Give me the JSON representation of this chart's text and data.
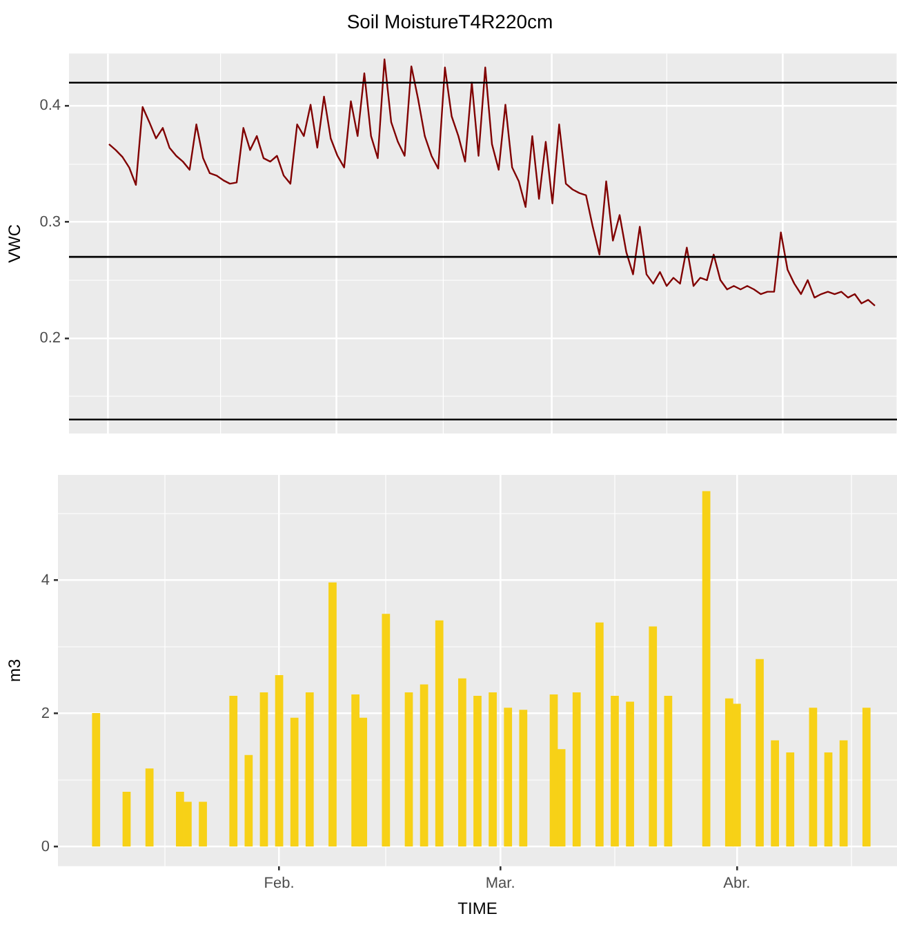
{
  "chart_data": [
    {
      "type": "line",
      "title": "Soil MoistureT4R220cm",
      "ylabel": "VWC",
      "color": "#800000",
      "categories": [
        null,
        null,
        null,
        null,
        null,
        null,
        null,
        null,
        null,
        null,
        null,
        null,
        null,
        null,
        null,
        null,
        null,
        null,
        null,
        null,
        null,
        null,
        null,
        null,
        null,
        null,
        null,
        null,
        null,
        null,
        null,
        null,
        null,
        null,
        null,
        null,
        null,
        null,
        null,
        null,
        null,
        null,
        null,
        null,
        null,
        null,
        null,
        null,
        null,
        null,
        null,
        null,
        null,
        null,
        null,
        null,
        null,
        null,
        null,
        null,
        null,
        null,
        null,
        null,
        null,
        null,
        null,
        null,
        null,
        null,
        null,
        null,
        null,
        null,
        null,
        null,
        null,
        null,
        null,
        null,
        null,
        null,
        null,
        null,
        null,
        null,
        null,
        null,
        null,
        null,
        null,
        null,
        null,
        null,
        null,
        null,
        null,
        null,
        null,
        null,
        null,
        null,
        null,
        null,
        null,
        null,
        null,
        null,
        null,
        null,
        null,
        null,
        null,
        null,
        null
      ],
      "values": [
        0.367,
        0.362,
        0.356,
        0.347,
        0.332,
        0.399,
        0.386,
        0.372,
        0.381,
        0.364,
        0.357,
        0.352,
        0.345,
        0.384,
        0.355,
        0.342,
        0.34,
        0.336,
        0.333,
        0.334,
        0.381,
        0.362,
        0.374,
        0.355,
        0.352,
        0.357,
        0.34,
        0.333,
        0.384,
        0.374,
        0.401,
        0.364,
        0.408,
        0.372,
        0.357,
        0.347,
        0.404,
        0.374,
        0.428,
        0.374,
        0.355,
        0.44,
        0.386,
        0.369,
        0.357,
        0.434,
        0.406,
        0.374,
        0.357,
        0.346,
        0.433,
        0.391,
        0.374,
        0.352,
        0.42,
        0.357,
        0.433,
        0.367,
        0.345,
        0.401,
        0.347,
        0.335,
        0.313,
        0.374,
        0.32,
        0.369,
        0.316,
        0.384,
        0.333,
        0.328,
        0.325,
        0.323,
        0.296,
        0.272,
        0.335,
        0.284,
        0.306,
        0.274,
        0.255,
        0.296,
        0.255,
        0.247,
        0.257,
        0.245,
        0.252,
        0.247,
        0.278,
        0.245,
        0.252,
        0.25,
        0.272,
        0.25,
        0.242,
        0.245,
        0.242,
        0.245,
        0.242,
        0.238,
        0.24,
        0.24,
        0.291,
        0.259,
        0.247,
        0.238,
        0.25,
        0.235,
        0.238,
        0.24,
        0.238,
        0.24,
        0.235,
        0.238,
        0.23,
        0.233,
        0.228
      ],
      "ylim": [
        0.118,
        0.445
      ],
      "yticks": [
        {
          "value": 0.15,
          "label": null
        },
        0.2,
        {
          "value": 0.25,
          "label": null
        },
        0.3,
        {
          "value": 0.35,
          "label": null
        },
        0.4
      ],
      "ref_lines": [
        {
          "axis": "y",
          "value": 0.42,
          "color": "#000000"
        },
        {
          "axis": "y",
          "value": 0.27,
          "color": "#000000"
        },
        {
          "axis": "y",
          "value": 0.13,
          "color": "#000000"
        }
      ],
      "grid": true,
      "tick_labels": "y",
      "line_style": "solid",
      "marker": "none"
    },
    {
      "type": "bar",
      "xlabel": "TIME",
      "ylabel": "m3",
      "color": "#f7d117",
      "x": [
        "--01-08",
        "--01-12",
        "--01-15",
        "--01-19",
        "--01-20",
        "--01-22",
        "--01-26",
        "--01-28",
        "--01-30",
        "--02-01",
        "--02-03",
        "--02-05",
        "--02-08",
        "--02-11",
        "--02-12",
        "--02-15",
        "--02-18",
        "--02-20",
        "--02-22",
        "--02-25",
        "--02-27",
        "--02-29",
        "--03-02",
        "--03-04",
        "--03-08",
        "--03-09",
        "--03-11",
        "--03-14",
        "--03-16",
        "--03-18",
        "--03-21",
        "--03-23",
        "--03-28",
        "--03-31",
        "--04-01",
        "--04-04",
        "--04-06",
        "--04-08",
        "--04-11",
        "--04-13",
        "--04-15",
        "--04-18"
      ],
      "values": [
        2.0,
        0.82,
        1.17,
        0.82,
        0.67,
        0.67,
        2.26,
        1.37,
        2.31,
        2.57,
        1.93,
        2.31,
        3.96,
        2.28,
        1.93,
        3.49,
        2.31,
        2.43,
        3.39,
        2.52,
        2.26,
        2.31,
        2.08,
        2.05,
        2.28,
        1.46,
        2.31,
        3.36,
        2.26,
        2.17,
        3.3,
        2.26,
        5.33,
        2.22,
        2.14,
        2.81,
        1.59,
        1.41,
        2.08,
        1.41,
        1.59,
        2.08
      ],
      "xlim": [
        "--01-03",
        "--04-22"
      ],
      "xticks": [
        {
          "value": "--01-17",
          "label": null
        },
        {
          "value": "--02-01",
          "label": "Feb."
        },
        {
          "value": "--02-15",
          "label": null
        },
        {
          "value": "--03-01",
          "label": "Mar."
        },
        {
          "value": "--03-16",
          "label": null
        },
        {
          "value": "--04-01",
          "label": "Abr."
        },
        {
          "value": "--04-16",
          "label": null
        }
      ],
      "ylim": [
        -0.29,
        5.58
      ],
      "yticks": [
        0,
        {
          "value": 1,
          "label": null
        },
        2,
        {
          "value": 3,
          "label": null
        },
        4,
        {
          "value": 5,
          "label": null
        }
      ],
      "grid": true
    }
  ]
}
